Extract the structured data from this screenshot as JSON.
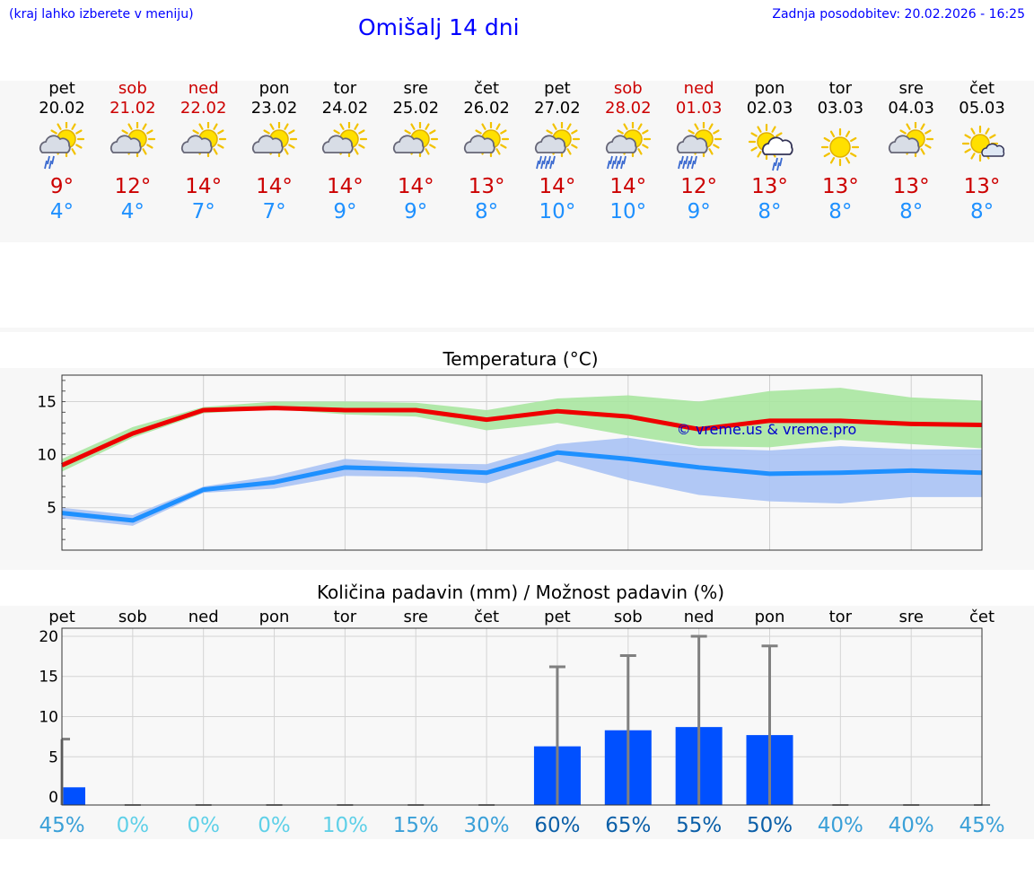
{
  "header": {
    "left_note": "(kraj lahko izberete v meniju)",
    "title": "Omišalj 14 dni",
    "updated": "Zadnja posodobitev: 20.02.2026 - 16:25"
  },
  "days": [
    {
      "name": "pet",
      "date": "20.02",
      "icon": "sun-cloud-rain-icon",
      "tmax": "9°",
      "tmin": "4°",
      "weekend": false
    },
    {
      "name": "sob",
      "date": "21.02",
      "icon": "sun-cloud-icon",
      "tmax": "12°",
      "tmin": "4°",
      "weekend": true
    },
    {
      "name": "ned",
      "date": "22.02",
      "icon": "sun-cloud-icon",
      "tmax": "14°",
      "tmin": "7°",
      "weekend": true
    },
    {
      "name": "pon",
      "date": "23.02",
      "icon": "sun-cloud-icon",
      "tmax": "14°",
      "tmin": "7°",
      "weekend": false
    },
    {
      "name": "tor",
      "date": "24.02",
      "icon": "sun-cloud-icon",
      "tmax": "14°",
      "tmin": "9°",
      "weekend": false
    },
    {
      "name": "sre",
      "date": "25.02",
      "icon": "sun-cloud-icon",
      "tmax": "14°",
      "tmin": "9°",
      "weekend": false
    },
    {
      "name": "čet",
      "date": "26.02",
      "icon": "sun-cloud-icon",
      "tmax": "13°",
      "tmin": "8°",
      "weekend": false
    },
    {
      "name": "pet",
      "date": "27.02",
      "icon": "sun-cloud-heavy-rain-icon",
      "tmax": "14°",
      "tmin": "10°",
      "weekend": false
    },
    {
      "name": "sob",
      "date": "28.02",
      "icon": "sun-cloud-heavy-rain-icon",
      "tmax": "14°",
      "tmin": "10°",
      "weekend": true
    },
    {
      "name": "ned",
      "date": "01.03",
      "icon": "sun-cloud-heavy-rain-icon",
      "tmax": "12°",
      "tmin": "9°",
      "weekend": true
    },
    {
      "name": "pon",
      "date": "02.03",
      "icon": "sun-white-cloud-rain-icon",
      "tmax": "13°",
      "tmin": "8°",
      "weekend": false
    },
    {
      "name": "tor",
      "date": "03.03",
      "icon": "sun-icon",
      "tmax": "13°",
      "tmin": "8°",
      "weekend": false
    },
    {
      "name": "sre",
      "date": "04.03",
      "icon": "sun-cloud-icon",
      "tmax": "13°",
      "tmin": "8°",
      "weekend": false
    },
    {
      "name": "čet",
      "date": "05.03",
      "icon": "sun-small-cloud-icon",
      "tmax": "13°",
      "tmin": "8°",
      "weekend": false
    }
  ],
  "colors": {
    "max": "#ee0000",
    "min": "#1e90ff",
    "max_band": "#a8e6a0",
    "min_band": "#a9c2f4",
    "bar": "#0050ff",
    "errbar": "#808080"
  },
  "chart_data": [
    {
      "type": "line",
      "title": "Temperatura (°C)",
      "watermark": "© vreme.us & vreme.pro",
      "x": [
        0,
        1,
        2,
        3,
        4,
        5,
        6,
        7,
        8,
        9,
        10,
        11,
        12,
        13
      ],
      "ylim": [
        1,
        17.5
      ],
      "yticks": [
        "5",
        "10",
        "15"
      ],
      "series": [
        {
          "name": "max",
          "values": [
            9.0,
            12.0,
            14.2,
            14.4,
            14.2,
            14.2,
            13.3,
            14.1,
            13.6,
            12.4,
            13.2,
            13.2,
            12.9,
            12.8
          ],
          "band_low": [
            8.4,
            11.6,
            13.9,
            14.3,
            13.8,
            13.6,
            12.3,
            13.0,
            11.8,
            10.8,
            10.7,
            11.4,
            11.0,
            10.6
          ],
          "band_high": [
            9.6,
            12.6,
            14.5,
            15.0,
            15.0,
            14.9,
            14.2,
            15.3,
            15.6,
            15.0,
            16.0,
            16.3,
            15.4,
            15.1
          ]
        },
        {
          "name": "min",
          "values": [
            4.5,
            3.8,
            6.7,
            7.4,
            8.8,
            8.6,
            8.3,
            10.2,
            9.6,
            8.8,
            8.2,
            8.3,
            8.5,
            8.3
          ],
          "band_low": [
            4.0,
            3.3,
            6.4,
            6.8,
            8.0,
            7.9,
            7.3,
            9.4,
            7.6,
            6.2,
            5.6,
            5.4,
            6.0,
            6.0
          ],
          "band_high": [
            5.0,
            4.3,
            7.0,
            8.0,
            9.6,
            9.2,
            9.1,
            11.0,
            11.6,
            10.6,
            10.4,
            10.8,
            10.5,
            10.5
          ]
        }
      ]
    },
    {
      "type": "bar",
      "title": "Količina padavin (mm) / Možnost padavin (%)",
      "categories": [
        "pet",
        "sob",
        "ned",
        "pon",
        "tor",
        "sre",
        "čet",
        "pet",
        "sob",
        "ned",
        "pon",
        "tor",
        "sre",
        "čet"
      ],
      "values": [
        1.2,
        0,
        0,
        0,
        0,
        0,
        0,
        6.3,
        8.3,
        8.7,
        7.7,
        0,
        0,
        0
      ],
      "upper": [
        7.2,
        0,
        0,
        0,
        0,
        0,
        0,
        16.2,
        17.6,
        20.0,
        18.8,
        0,
        0,
        0
      ],
      "chance": [
        "45%",
        "0%",
        "0%",
        "0%",
        "10%",
        "15%",
        "30%",
        "60%",
        "65%",
        "55%",
        "50%",
        "40%",
        "40%",
        "45%"
      ],
      "chance_colors": [
        "#3aa0d8",
        "#5fd0e8",
        "#5fd0e8",
        "#5fd0e8",
        "#5fd0e8",
        "#3aa0d8",
        "#3aa0d8",
        "#0b5fa8",
        "#0b5fa8",
        "#0b5fa8",
        "#0b5fa8",
        "#3aa0d8",
        "#3aa0d8",
        "#3aa0d8"
      ],
      "ylim": [
        -1,
        21
      ],
      "yticks": [
        "0",
        "5",
        "10",
        "15",
        "20"
      ]
    }
  ]
}
